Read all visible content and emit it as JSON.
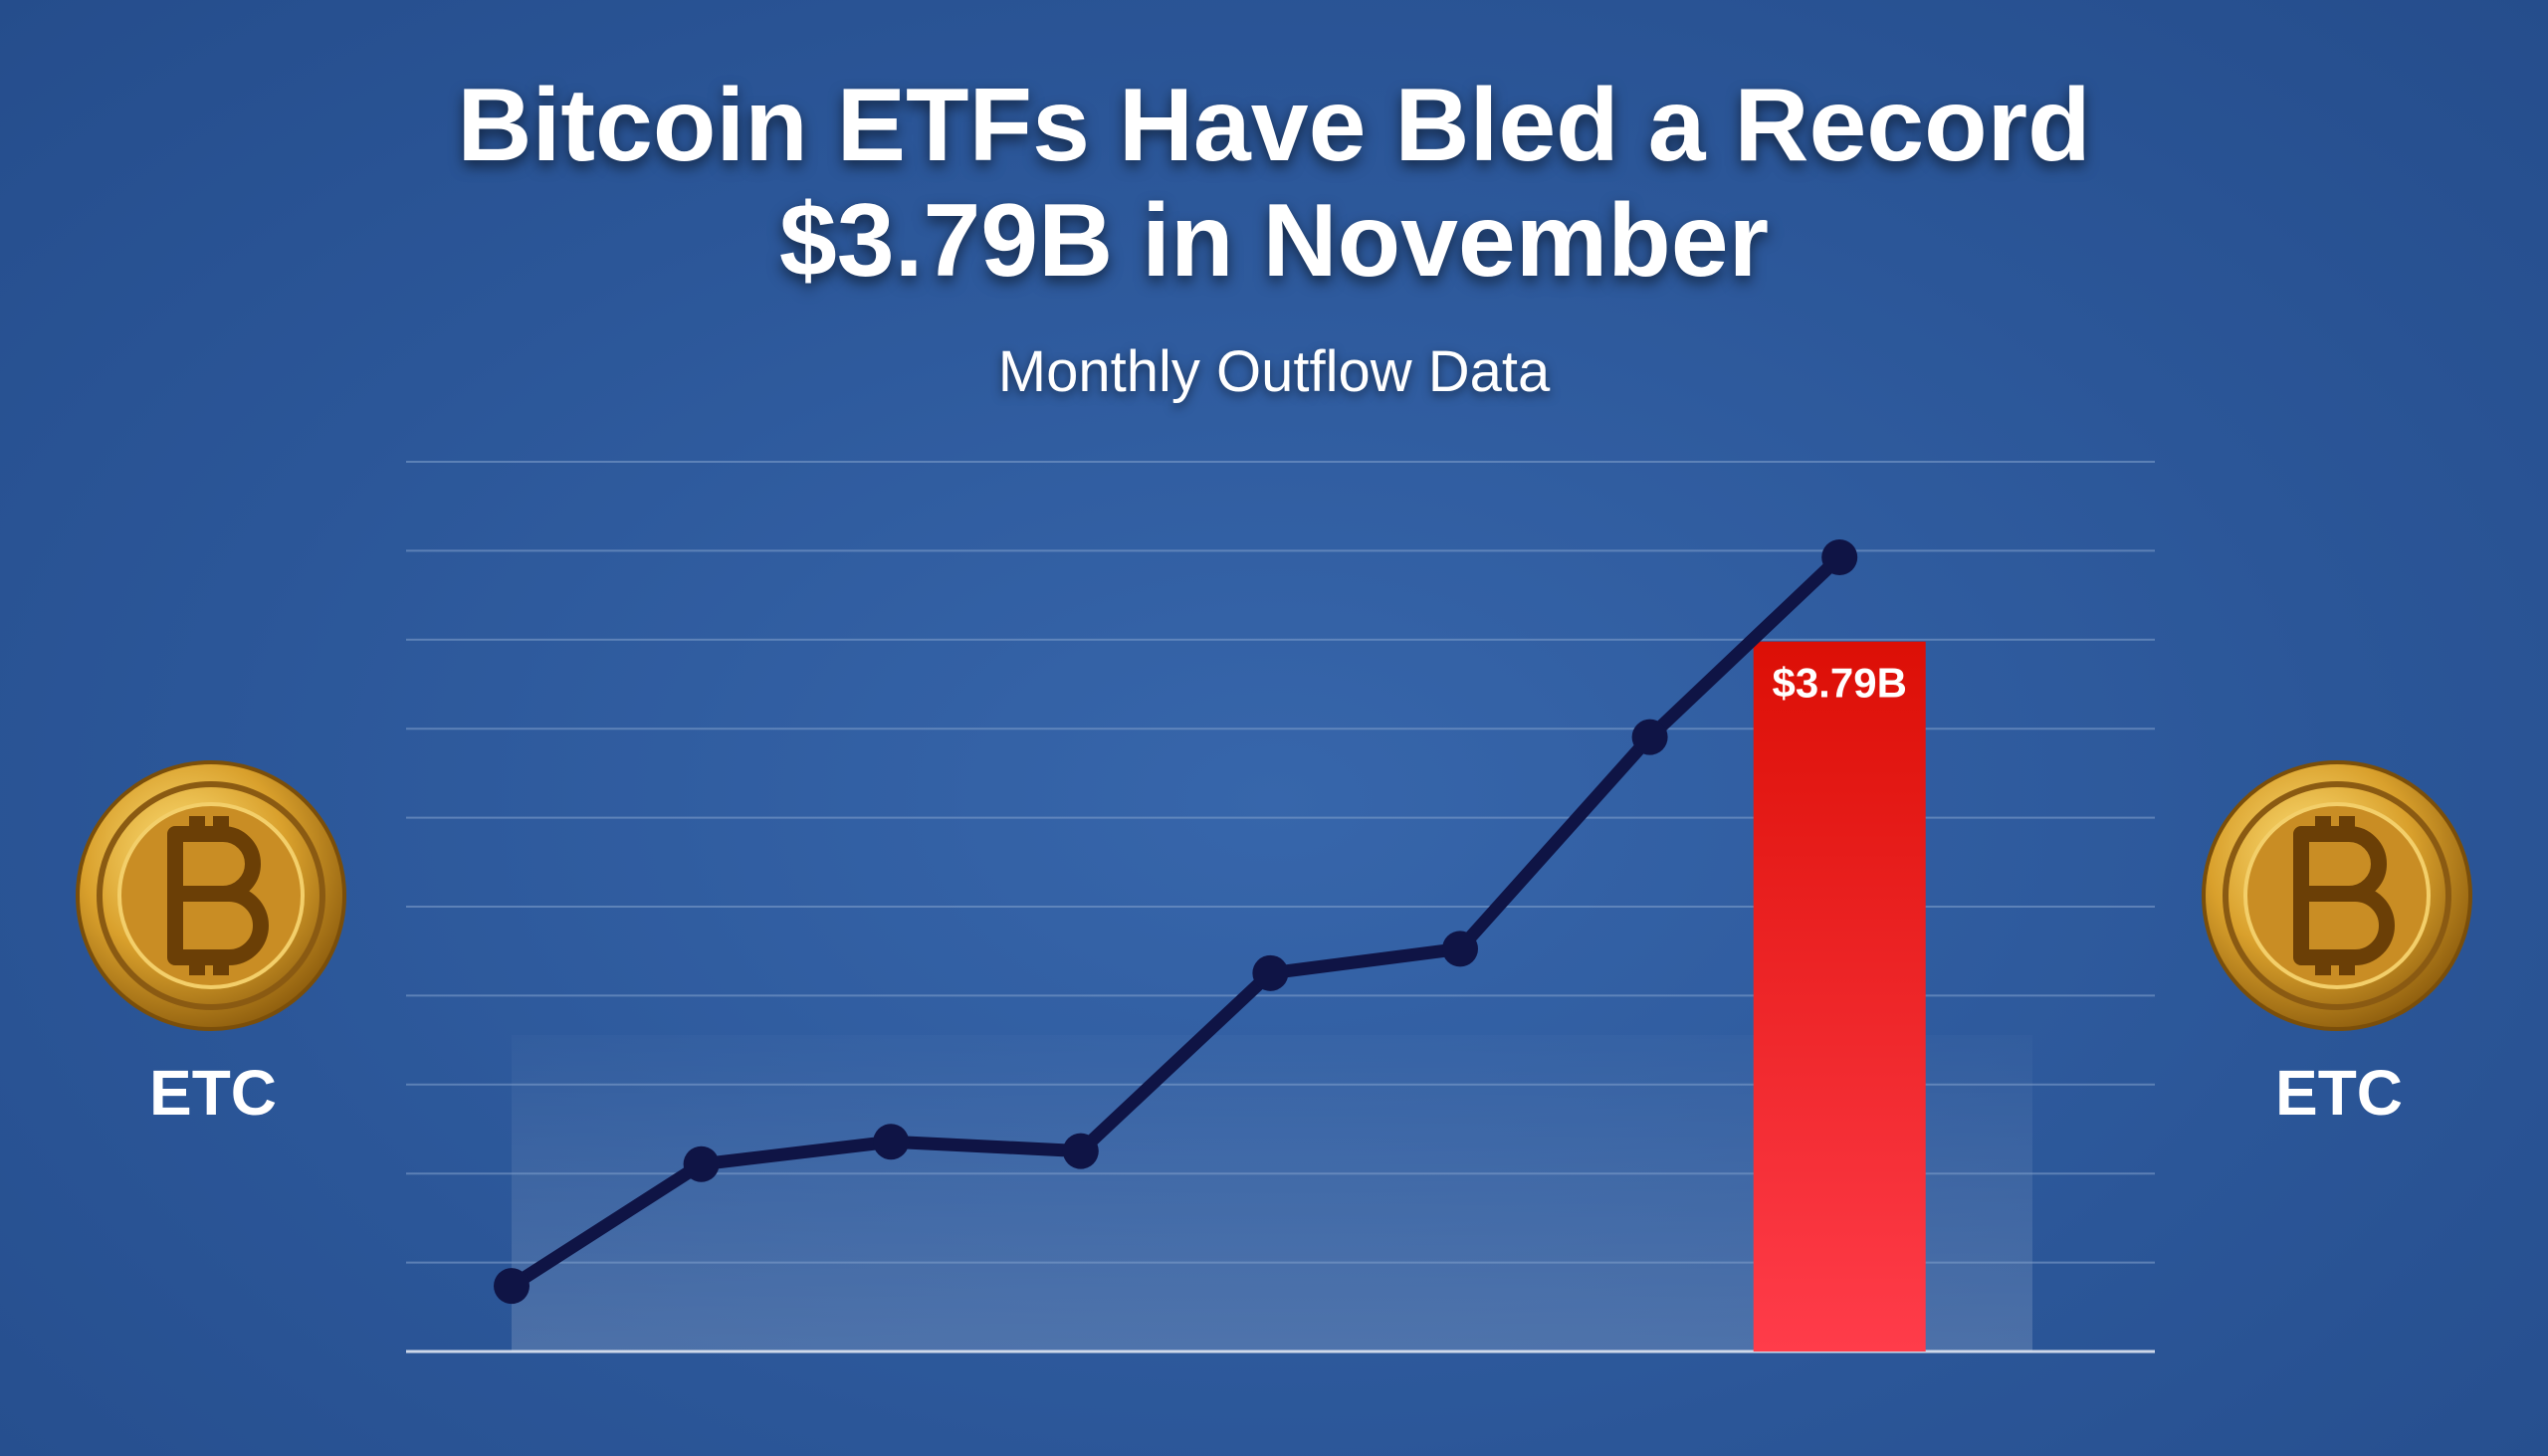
{
  "chart_data": {
    "type": "combo",
    "title": "Bitcoin ETFs Have Bled a Record $3.79B in November",
    "subtitle": "Monthly Outflow Data",
    "categories": [
      null,
      null,
      null,
      null,
      null,
      null,
      null,
      null
    ],
    "series": [
      {
        "type": "line",
        "color": "#0f1445",
        "values": [
          0.35,
          1.0,
          1.12,
          1.07,
          2.02,
          2.15,
          3.28,
          4.24
        ]
      },
      {
        "type": "bar",
        "color": "#e0140f",
        "values": [
          null,
          null,
          null,
          null,
          null,
          null,
          null,
          3.79
        ],
        "value_labels": [
          null,
          null,
          null,
          null,
          null,
          null,
          null,
          "$3.79B"
        ]
      }
    ],
    "ylim": [
      0,
      4.75
    ],
    "grid": true,
    "side_labels": [
      "ETC",
      "ETC"
    ]
  }
}
